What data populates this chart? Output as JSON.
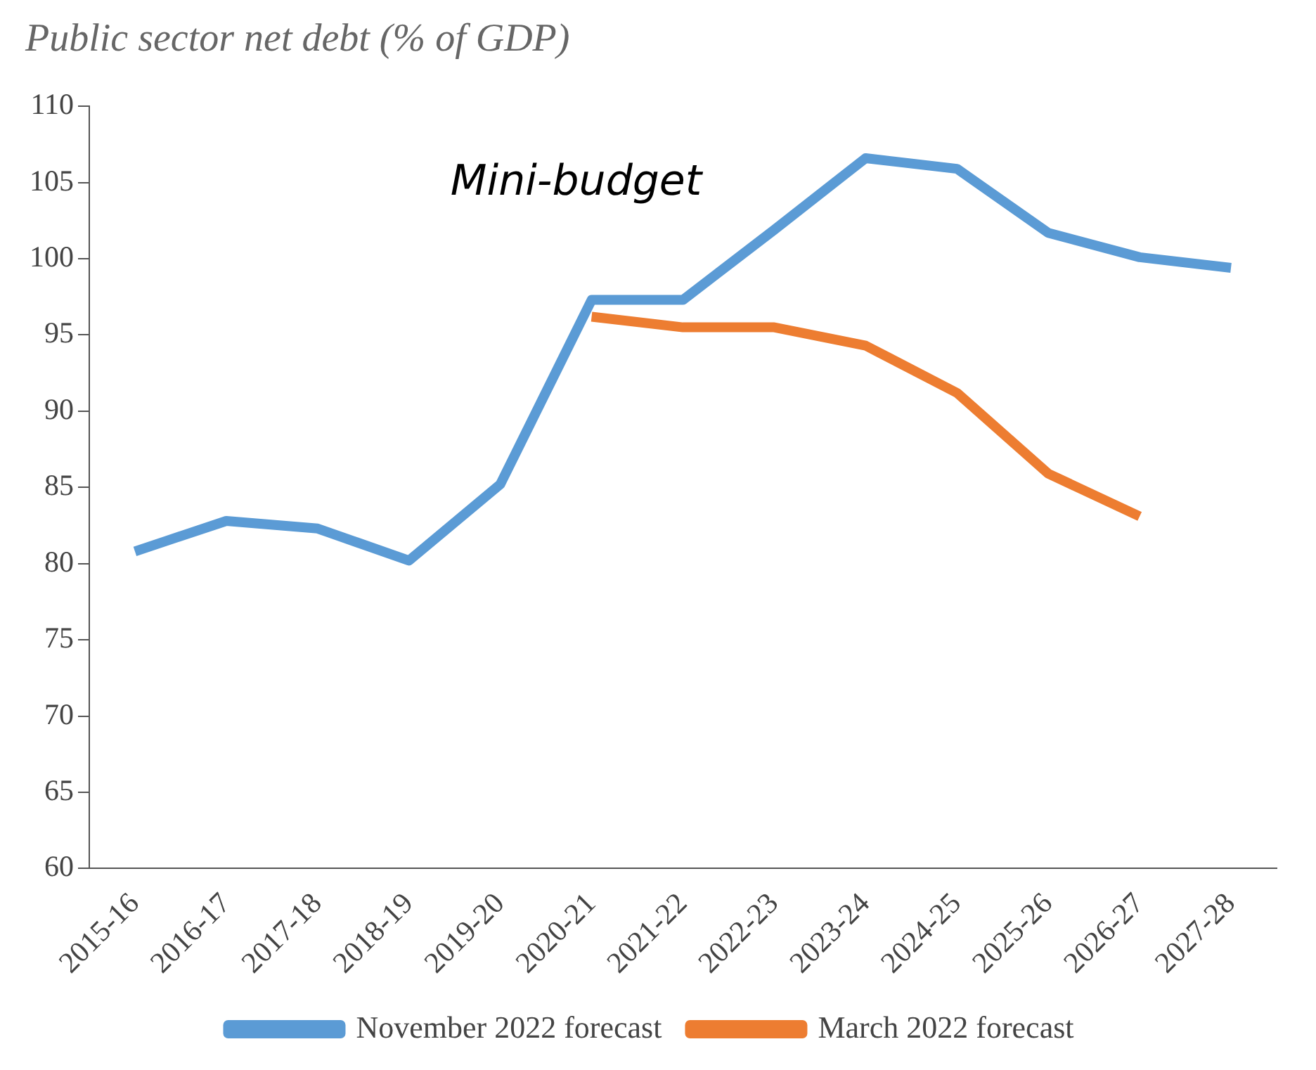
{
  "chart_data": {
    "type": "line",
    "title": "Public sector net debt (% of GDP)",
    "categories": [
      "2015-16",
      "2016-17",
      "2017-18",
      "2018-19",
      "2019-20",
      "2020-21",
      "2021-22",
      "2022-23",
      "2023-24",
      "2024-25",
      "2025-26",
      "2026-27",
      "2027-28"
    ],
    "series": [
      {
        "name": "November 2022 forecast",
        "color": "#5b9bd5",
        "values": [
          80.8,
          82.8,
          82.3,
          80.2,
          85.2,
          97.3,
          97.3,
          101.9,
          106.6,
          105.9,
          101.7,
          100.1,
          99.4
        ]
      },
      {
        "name": "March 2022 forecast",
        "color": "#ed7d31",
        "values": [
          null,
          null,
          null,
          null,
          null,
          96.2,
          95.5,
          95.5,
          94.3,
          91.2,
          85.9,
          83.1,
          null
        ]
      }
    ],
    "ylim": [
      60,
      110
    ],
    "yticks": [
      60,
      65,
      70,
      75,
      80,
      85,
      90,
      95,
      100,
      105,
      110
    ],
    "annotations": [
      "Mini-budget"
    ],
    "grid": false,
    "legend": "bottom",
    "marker": "none",
    "line_style": "solid"
  }
}
